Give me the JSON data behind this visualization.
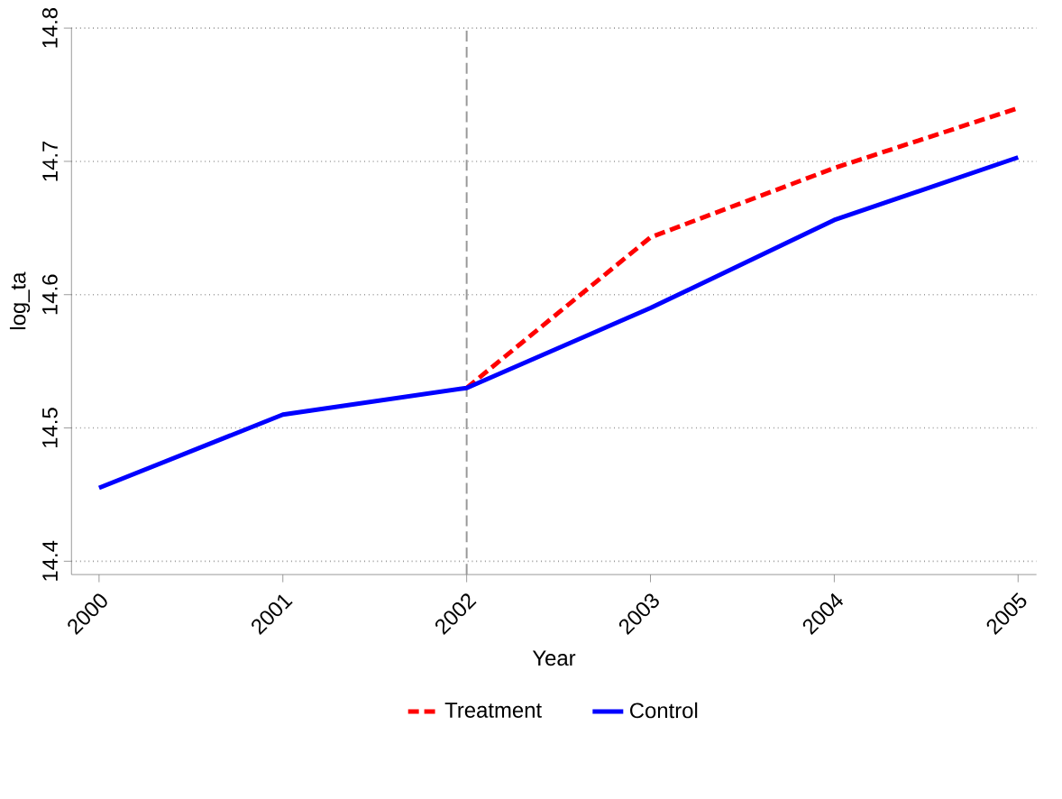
{
  "chart_data": {
    "type": "line",
    "xlabel": "Year",
    "ylabel": "log_ta",
    "x": [
      2000,
      2001,
      2002,
      2003,
      2004,
      2005
    ],
    "series": [
      {
        "name": "Treatment",
        "color": "#ff0000",
        "line_style": "dashed",
        "values": [
          null,
          null,
          14.53,
          14.643,
          14.695,
          14.74
        ]
      },
      {
        "name": "Control",
        "color": "#0000ff",
        "line_style": "solid",
        "values": [
          14.455,
          14.51,
          14.53,
          14.59,
          14.656,
          14.703
        ]
      }
    ],
    "xlim": [
      1999.85,
      2005.1
    ],
    "ylim": [
      14.39,
      14.8
    ],
    "xticks": [
      2000,
      2001,
      2002,
      2003,
      2004,
      2005
    ],
    "yticks": [
      14.4,
      14.5,
      14.6,
      14.7,
      14.8
    ],
    "grid": "y",
    "legend": "bottom",
    "marker": "none",
    "ref_lines": [
      {
        "axis": "x",
        "value": 2002,
        "color": "#999999",
        "line_style": "dashed"
      }
    ]
  }
}
